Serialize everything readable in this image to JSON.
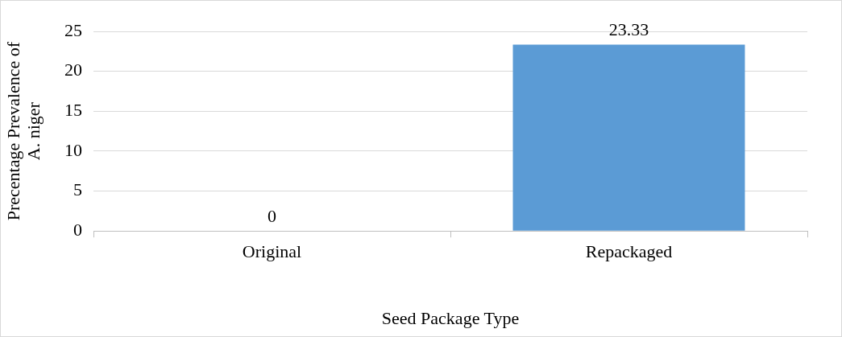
{
  "chart_data": {
    "type": "bar",
    "categories": [
      "Original",
      "Repackaged"
    ],
    "values": [
      0,
      23.33
    ],
    "color": "#5b9bd5",
    "ylim": [
      0,
      25
    ],
    "yticks": [
      0,
      5,
      10,
      15,
      20,
      25
    ],
    "grid": "y",
    "data_labels": true,
    "xlabel": "Seed Package Type",
    "ylabel": "Precentage Prevalence of A. niger"
  }
}
